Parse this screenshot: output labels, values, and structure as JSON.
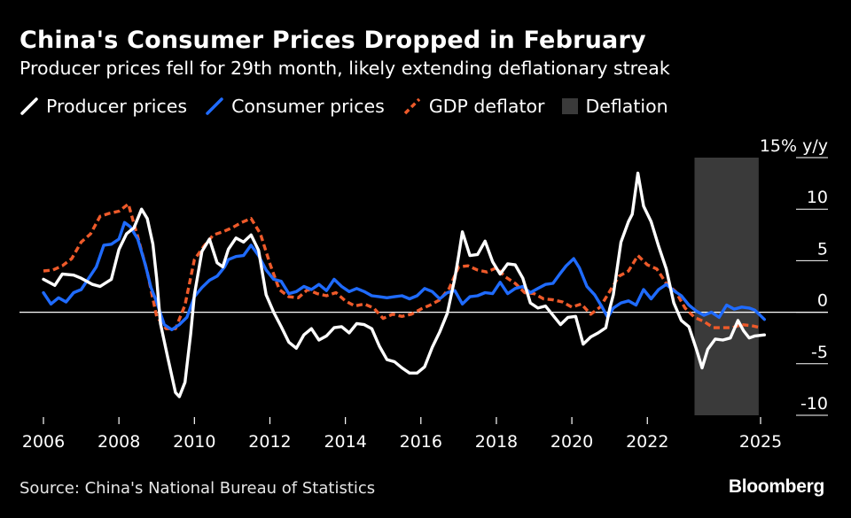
{
  "header": {
    "title": "China's Consumer Prices Dropped in February",
    "subtitle": "Producer prices fell for 29th month, likely extending deflationary streak"
  },
  "footer": {
    "source": "Source: China's National Bureau of Statistics",
    "brand": "Bloomberg"
  },
  "chart_data": {
    "type": "line",
    "title": "China's Consumer Prices Dropped in February",
    "subtitle": "Producer prices fell for 29th month, likely extending deflationary streak",
    "y_unit_label": "15% y/y",
    "ylim": [
      -10,
      15
    ],
    "y_ticks": [
      15,
      10,
      5,
      0,
      -5,
      -10
    ],
    "y_tick_labels": [
      "15% y/y",
      "10",
      "5",
      "0",
      "-5",
      "-10"
    ],
    "xlim": [
      2006,
      2025.3
    ],
    "x_ticks": [
      2006,
      2008,
      2010,
      2012,
      2014,
      2016,
      2018,
      2020,
      2022,
      2025
    ],
    "x_tick_labels": [
      "2006",
      "2008",
      "2010",
      "2012",
      "2014",
      "2016",
      "2018",
      "2020",
      "2022",
      "2025"
    ],
    "legend_position": "top-left",
    "zero_line": true,
    "shaded_regions": [
      {
        "name": "Deflation",
        "x_start": 2023.25,
        "x_end": 2024.95,
        "color": "#3a3a3a"
      }
    ],
    "series": [
      {
        "name": "Producer prices",
        "color": "#ffffff",
        "style": "solid",
        "points": [
          [
            2006.0,
            3.2
          ],
          [
            2006.3,
            2.6
          ],
          [
            2006.5,
            3.7
          ],
          [
            2006.8,
            3.6
          ],
          [
            2007.0,
            3.3
          ],
          [
            2007.3,
            2.7
          ],
          [
            2007.5,
            2.5
          ],
          [
            2007.8,
            3.2
          ],
          [
            2008.0,
            6.1
          ],
          [
            2008.2,
            7.6
          ],
          [
            2008.4,
            8.2
          ],
          [
            2008.6,
            10.0
          ],
          [
            2008.75,
            9.1
          ],
          [
            2008.9,
            6.6
          ],
          [
            2009.0,
            3.3
          ],
          [
            2009.1,
            -1.1
          ],
          [
            2009.3,
            -4.5
          ],
          [
            2009.5,
            -7.8
          ],
          [
            2009.6,
            -8.2
          ],
          [
            2009.75,
            -6.8
          ],
          [
            2009.9,
            -2.1
          ],
          [
            2010.0,
            1.7
          ],
          [
            2010.2,
            5.9
          ],
          [
            2010.4,
            7.1
          ],
          [
            2010.6,
            4.8
          ],
          [
            2010.75,
            4.4
          ],
          [
            2010.9,
            6.1
          ],
          [
            2011.1,
            7.2
          ],
          [
            2011.3,
            6.8
          ],
          [
            2011.5,
            7.5
          ],
          [
            2011.7,
            6.0
          ],
          [
            2011.9,
            1.7
          ],
          [
            2012.1,
            0.0
          ],
          [
            2012.3,
            -1.4
          ],
          [
            2012.5,
            -2.9
          ],
          [
            2012.7,
            -3.5
          ],
          [
            2012.9,
            -2.2
          ],
          [
            2013.1,
            -1.6
          ],
          [
            2013.3,
            -2.7
          ],
          [
            2013.5,
            -2.3
          ],
          [
            2013.7,
            -1.5
          ],
          [
            2013.9,
            -1.4
          ],
          [
            2014.1,
            -2.0
          ],
          [
            2014.3,
            -1.1
          ],
          [
            2014.5,
            -1.2
          ],
          [
            2014.7,
            -1.6
          ],
          [
            2014.9,
            -3.3
          ],
          [
            2015.1,
            -4.6
          ],
          [
            2015.3,
            -4.8
          ],
          [
            2015.5,
            -5.4
          ],
          [
            2015.7,
            -5.9
          ],
          [
            2015.9,
            -5.9
          ],
          [
            2016.1,
            -5.3
          ],
          [
            2016.3,
            -3.4
          ],
          [
            2016.5,
            -1.9
          ],
          [
            2016.7,
            -0.1
          ],
          [
            2016.9,
            3.3
          ],
          [
            2017.0,
            5.5
          ],
          [
            2017.1,
            7.8
          ],
          [
            2017.3,
            5.5
          ],
          [
            2017.5,
            5.6
          ],
          [
            2017.7,
            6.9
          ],
          [
            2017.9,
            4.9
          ],
          [
            2018.1,
            3.7
          ],
          [
            2018.3,
            4.7
          ],
          [
            2018.5,
            4.6
          ],
          [
            2018.7,
            3.3
          ],
          [
            2018.9,
            0.9
          ],
          [
            2019.1,
            0.4
          ],
          [
            2019.3,
            0.6
          ],
          [
            2019.5,
            -0.3
          ],
          [
            2019.7,
            -1.2
          ],
          [
            2019.9,
            -0.5
          ],
          [
            2020.1,
            -0.4
          ],
          [
            2020.3,
            -3.1
          ],
          [
            2020.5,
            -2.4
          ],
          [
            2020.7,
            -2.0
          ],
          [
            2020.9,
            -1.5
          ],
          [
            2021.0,
            0.3
          ],
          [
            2021.1,
            1.7
          ],
          [
            2021.3,
            6.8
          ],
          [
            2021.5,
            8.8
          ],
          [
            2021.6,
            9.5
          ],
          [
            2021.75,
            13.5
          ],
          [
            2021.9,
            10.3
          ],
          [
            2022.1,
            8.8
          ],
          [
            2022.3,
            6.4
          ],
          [
            2022.5,
            4.2
          ],
          [
            2022.7,
            0.9
          ],
          [
            2022.9,
            -0.8
          ],
          [
            2023.1,
            -1.4
          ],
          [
            2023.3,
            -3.6
          ],
          [
            2023.45,
            -5.4
          ],
          [
            2023.6,
            -3.6
          ],
          [
            2023.8,
            -2.6
          ],
          [
            2024.0,
            -2.7
          ],
          [
            2024.2,
            -2.5
          ],
          [
            2024.4,
            -0.8
          ],
          [
            2024.55,
            -1.8
          ],
          [
            2024.7,
            -2.5
          ],
          [
            2024.85,
            -2.3
          ],
          [
            2025.1,
            -2.2
          ]
        ]
      },
      {
        "name": "Consumer prices",
        "color": "#1f6bff",
        "style": "solid",
        "points": [
          [
            2006.0,
            1.9
          ],
          [
            2006.2,
            0.8
          ],
          [
            2006.4,
            1.4
          ],
          [
            2006.6,
            1.0
          ],
          [
            2006.8,
            1.9
          ],
          [
            2007.0,
            2.2
          ],
          [
            2007.2,
            3.3
          ],
          [
            2007.4,
            4.4
          ],
          [
            2007.6,
            6.5
          ],
          [
            2007.8,
            6.6
          ],
          [
            2008.0,
            7.1
          ],
          [
            2008.15,
            8.7
          ],
          [
            2008.3,
            8.3
          ],
          [
            2008.5,
            7.1
          ],
          [
            2008.7,
            4.6
          ],
          [
            2008.85,
            2.4
          ],
          [
            2009.0,
            1.0
          ],
          [
            2009.2,
            -1.2
          ],
          [
            2009.4,
            -1.7
          ],
          [
            2009.6,
            -1.2
          ],
          [
            2009.8,
            -0.5
          ],
          [
            2010.0,
            1.5
          ],
          [
            2010.2,
            2.4
          ],
          [
            2010.4,
            3.1
          ],
          [
            2010.6,
            3.5
          ],
          [
            2010.8,
            4.4
          ],
          [
            2010.9,
            5.1
          ],
          [
            2011.1,
            5.4
          ],
          [
            2011.3,
            5.5
          ],
          [
            2011.5,
            6.5
          ],
          [
            2011.7,
            5.5
          ],
          [
            2011.9,
            4.1
          ],
          [
            2012.1,
            3.2
          ],
          [
            2012.3,
            3.0
          ],
          [
            2012.5,
            1.8
          ],
          [
            2012.7,
            2.0
          ],
          [
            2012.9,
            2.5
          ],
          [
            2013.1,
            2.2
          ],
          [
            2013.3,
            2.7
          ],
          [
            2013.5,
            2.1
          ],
          [
            2013.7,
            3.2
          ],
          [
            2013.9,
            2.5
          ],
          [
            2014.1,
            2.0
          ],
          [
            2014.3,
            2.3
          ],
          [
            2014.5,
            2.0
          ],
          [
            2014.7,
            1.6
          ],
          [
            2014.9,
            1.5
          ],
          [
            2015.1,
            1.4
          ],
          [
            2015.3,
            1.5
          ],
          [
            2015.5,
            1.6
          ],
          [
            2015.7,
            1.3
          ],
          [
            2015.9,
            1.6
          ],
          [
            2016.1,
            2.3
          ],
          [
            2016.3,
            2.0
          ],
          [
            2016.5,
            1.3
          ],
          [
            2016.7,
            1.9
          ],
          [
            2016.9,
            2.1
          ],
          [
            2017.1,
            0.8
          ],
          [
            2017.3,
            1.5
          ],
          [
            2017.5,
            1.6
          ],
          [
            2017.7,
            1.9
          ],
          [
            2017.9,
            1.8
          ],
          [
            2018.1,
            2.9
          ],
          [
            2018.3,
            1.8
          ],
          [
            2018.5,
            2.3
          ],
          [
            2018.7,
            2.5
          ],
          [
            2018.9,
            1.9
          ],
          [
            2019.1,
            2.3
          ],
          [
            2019.3,
            2.7
          ],
          [
            2019.5,
            2.8
          ],
          [
            2019.7,
            3.8
          ],
          [
            2019.85,
            4.5
          ],
          [
            2020.05,
            5.2
          ],
          [
            2020.2,
            4.3
          ],
          [
            2020.4,
            2.5
          ],
          [
            2020.6,
            1.7
          ],
          [
            2020.8,
            0.5
          ],
          [
            2020.95,
            -0.5
          ],
          [
            2021.1,
            0.4
          ],
          [
            2021.3,
            0.9
          ],
          [
            2021.5,
            1.1
          ],
          [
            2021.7,
            0.7
          ],
          [
            2021.9,
            2.2
          ],
          [
            2022.1,
            1.3
          ],
          [
            2022.3,
            2.2
          ],
          [
            2022.5,
            2.7
          ],
          [
            2022.7,
            2.1
          ],
          [
            2022.9,
            1.6
          ],
          [
            2023.1,
            0.7
          ],
          [
            2023.3,
            0.1
          ],
          [
            2023.5,
            -0.3
          ],
          [
            2023.7,
            0.0
          ],
          [
            2023.9,
            -0.5
          ],
          [
            2024.1,
            0.7
          ],
          [
            2024.3,
            0.3
          ],
          [
            2024.5,
            0.5
          ],
          [
            2024.7,
            0.4
          ],
          [
            2024.85,
            0.2
          ],
          [
            2025.1,
            -0.7
          ]
        ]
      },
      {
        "name": "GDP deflator",
        "color": "#ee5a2a",
        "style": "dashed",
        "points": [
          [
            2006.0,
            4.0
          ],
          [
            2006.25,
            4.1
          ],
          [
            2006.5,
            4.5
          ],
          [
            2006.75,
            5.2
          ],
          [
            2007.0,
            6.8
          ],
          [
            2007.25,
            7.6
          ],
          [
            2007.5,
            9.3
          ],
          [
            2007.75,
            9.6
          ],
          [
            2008.0,
            9.8
          ],
          [
            2008.25,
            10.5
          ],
          [
            2008.5,
            7.3
          ],
          [
            2008.75,
            3.9
          ],
          [
            2009.0,
            -0.4
          ],
          [
            2009.25,
            -1.6
          ],
          [
            2009.5,
            -1.6
          ],
          [
            2009.75,
            0.7
          ],
          [
            2010.0,
            5.1
          ],
          [
            2010.25,
            6.4
          ],
          [
            2010.5,
            7.5
          ],
          [
            2010.75,
            7.8
          ],
          [
            2011.0,
            8.2
          ],
          [
            2011.25,
            8.7
          ],
          [
            2011.5,
            9.1
          ],
          [
            2011.75,
            7.6
          ],
          [
            2012.0,
            4.7
          ],
          [
            2012.25,
            2.2
          ],
          [
            2012.5,
            1.5
          ],
          [
            2012.75,
            1.4
          ],
          [
            2013.0,
            2.2
          ],
          [
            2013.25,
            1.8
          ],
          [
            2013.5,
            1.6
          ],
          [
            2013.75,
            1.9
          ],
          [
            2014.0,
            1.1
          ],
          [
            2014.25,
            0.6
          ],
          [
            2014.5,
            0.8
          ],
          [
            2014.75,
            0.4
          ],
          [
            2015.0,
            -0.6
          ],
          [
            2015.25,
            -0.2
          ],
          [
            2015.5,
            -0.4
          ],
          [
            2015.75,
            -0.2
          ],
          [
            2016.0,
            0.3
          ],
          [
            2016.25,
            0.7
          ],
          [
            2016.5,
            1.2
          ],
          [
            2016.75,
            2.3
          ],
          [
            2017.0,
            4.4
          ],
          [
            2017.25,
            4.5
          ],
          [
            2017.5,
            4.1
          ],
          [
            2017.75,
            3.9
          ],
          [
            2018.0,
            4.3
          ],
          [
            2018.25,
            3.4
          ],
          [
            2018.5,
            2.8
          ],
          [
            2018.75,
            1.9
          ],
          [
            2019.0,
            1.8
          ],
          [
            2019.25,
            1.3
          ],
          [
            2019.5,
            1.2
          ],
          [
            2019.75,
            1.0
          ],
          [
            2020.0,
            0.5
          ],
          [
            2020.25,
            0.8
          ],
          [
            2020.5,
            -0.2
          ],
          [
            2020.75,
            0.5
          ],
          [
            2021.0,
            2.0
          ],
          [
            2021.25,
            3.5
          ],
          [
            2021.5,
            4.0
          ],
          [
            2021.75,
            5.5
          ],
          [
            2022.0,
            4.6
          ],
          [
            2022.25,
            4.2
          ],
          [
            2022.5,
            2.8
          ],
          [
            2022.75,
            2.0
          ],
          [
            2023.0,
            0.4
          ],
          [
            2023.25,
            -0.5
          ],
          [
            2023.5,
            -0.9
          ],
          [
            2023.75,
            -1.5
          ],
          [
            2024.0,
            -1.5
          ],
          [
            2024.25,
            -1.5
          ],
          [
            2024.5,
            -1.2
          ],
          [
            2024.75,
            -1.3
          ],
          [
            2025.0,
            -1.5
          ]
        ]
      }
    ],
    "legend": [
      {
        "label": "Producer prices",
        "color": "#ffffff",
        "marker": "line"
      },
      {
        "label": "Consumer prices",
        "color": "#1f6bff",
        "marker": "line"
      },
      {
        "label": "GDP deflator",
        "color": "#ee5a2a",
        "marker": "dashed-line"
      },
      {
        "label": "Deflation",
        "color": "#3a3a3a",
        "marker": "box"
      }
    ]
  }
}
